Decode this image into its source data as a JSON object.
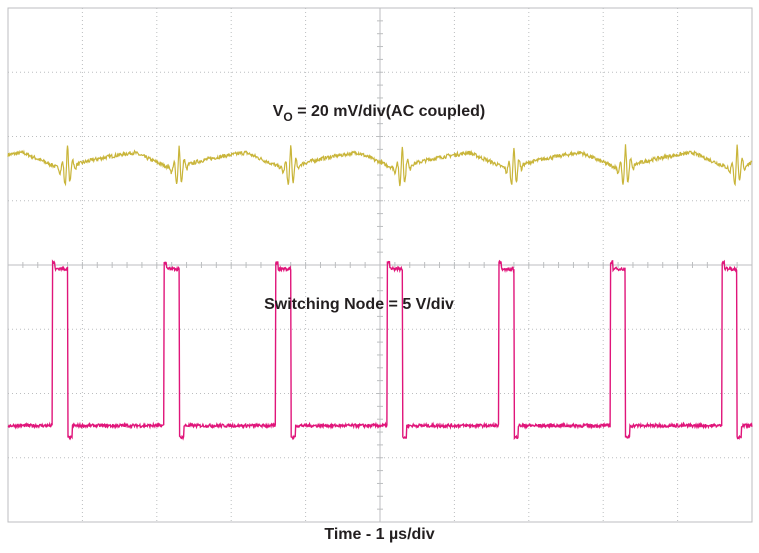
{
  "chart_data": {
    "type": "line",
    "title": "",
    "xlabel": "Time - 1 µs/div",
    "ylabel": "",
    "x_units": "µs",
    "xlim": [
      0,
      10
    ],
    "divisions": {
      "horizontal": 10,
      "vertical": 8
    },
    "grid": true,
    "series": [
      {
        "name": "V_O = 20 mV/div(AC coupled)",
        "label_main": "V",
        "label_sub": "O",
        "label_rest": " = 20 mV/div(AC coupled)",
        "color": "#c9b53a",
        "y_units": "mV",
        "y_scale": 20,
        "ground_division": 5.5,
        "trace": "ripple",
        "period_us": 1.5,
        "ripple_pp_mV": 6,
        "spike_pp_mV": 16,
        "spike_times_us": [
          0.8,
          2.3,
          3.8,
          5.3,
          6.8,
          8.3,
          9.8
        ]
      },
      {
        "name": "Switching Node = 5 V/div",
        "color": "#e0157a",
        "y_units": "V",
        "y_scale": 5,
        "ground_division": 1.5,
        "trace": "pulse",
        "period_us": 1.5,
        "pulse_rise_us": [
          0.6,
          2.1,
          3.6,
          5.1,
          6.6,
          8.1,
          9.6
        ],
        "pulse_width_us": 0.2,
        "high_V": 12.2
      }
    ]
  }
}
